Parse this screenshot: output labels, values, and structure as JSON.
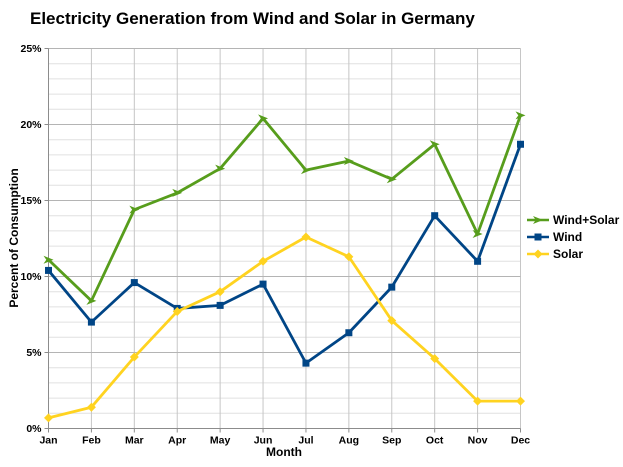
{
  "chart_data": {
    "type": "line",
    "title": "Electricity Generation from Wind and Solar in Germany",
    "xlabel": "Month",
    "ylabel": "Percent of Consumption",
    "categories": [
      "Jan",
      "Feb",
      "Mar",
      "Apr",
      "May",
      "Jun",
      "Jul",
      "Aug",
      "Sep",
      "Oct",
      "Nov",
      "Dec"
    ],
    "ylim": [
      0,
      25
    ],
    "y_major_step": 5,
    "y_minor_step": 1,
    "y_tick_suffix": "%",
    "grid": true,
    "legend_position": "right",
    "series": [
      {
        "name": "Wind+Solar",
        "color": "#579D1C",
        "marker": "arrow",
        "values": [
          11.1,
          8.4,
          14.4,
          15.5,
          17.1,
          20.4,
          17.0,
          17.6,
          16.4,
          18.7,
          12.8,
          20.6
        ]
      },
      {
        "name": "Wind",
        "color": "#004586",
        "marker": "square",
        "values": [
          10.4,
          7.0,
          9.6,
          7.9,
          8.1,
          9.5,
          4.3,
          6.3,
          9.3,
          14.0,
          11.0,
          18.7
        ]
      },
      {
        "name": "Solar",
        "color": "#FFD320",
        "marker": "diamond",
        "values": [
          0.7,
          1.4,
          4.7,
          7.7,
          9.0,
          11.0,
          12.6,
          11.3,
          7.1,
          4.6,
          1.8,
          1.8
        ]
      }
    ],
    "style": {
      "minor_grid_color": "#e0e0e0",
      "major_grid_color": "#b4b4b4",
      "vertical_grid_color": "#c6c6c6",
      "axis_color": "#8c8c8c",
      "background": "#ffffff"
    }
  }
}
